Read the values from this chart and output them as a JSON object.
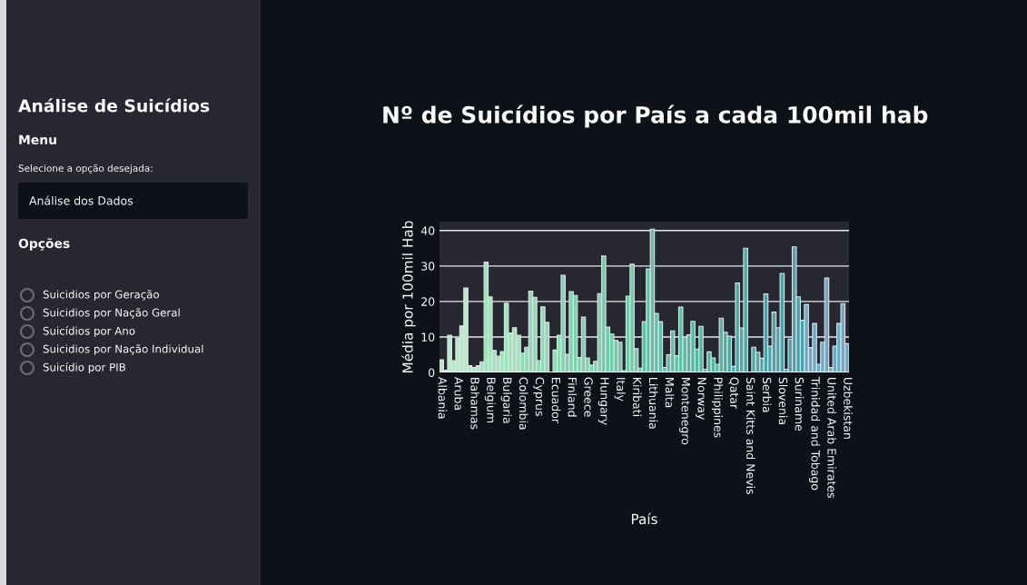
{
  "chart_data": {
    "type": "bar",
    "title": "Nº de Suicídios por País a cada 100mil hab",
    "xlabel": "País",
    "ylabel": "Média por 100mil Hab",
    "categories": [
      "Albania",
      null,
      null,
      null,
      "Aruba",
      null,
      null,
      null,
      "Bahamas",
      null,
      null,
      null,
      "Belgium",
      null,
      null,
      null,
      "Bulgaria",
      null,
      null,
      null,
      "Colombia",
      null,
      null,
      null,
      "Cyprus",
      null,
      null,
      null,
      "Ecuador",
      null,
      null,
      null,
      "Finland",
      null,
      null,
      null,
      "Greece",
      null,
      null,
      null,
      "Hungary",
      null,
      null,
      null,
      "Italy",
      null,
      null,
      null,
      "Kiribati",
      null,
      null,
      null,
      "Lithuania",
      null,
      null,
      null,
      "Malta",
      null,
      null,
      null,
      "Montenegro",
      null,
      null,
      null,
      "Norway",
      null,
      null,
      null,
      "Philippines",
      null,
      null,
      null,
      "Qatar",
      null,
      null,
      null,
      "Saint Kitts and Nevis",
      null,
      null,
      null,
      "Serbia",
      null,
      null,
      null,
      "Slovenia",
      null,
      null,
      null,
      "Suriname",
      null,
      null,
      null,
      "Trinidad and Tobago",
      null,
      null,
      null,
      "United Arab Emirates",
      null,
      null,
      null,
      "Uzbekistan"
    ],
    "values": [
      3.6,
      0.6,
      10.5,
      3.3,
      9.6,
      13.1,
      23.8,
      1.9,
      1.4,
      1.9,
      3.0,
      31.1,
      21.3,
      6.2,
      4.6,
      5.9,
      19.5,
      11.1,
      12.6,
      10.5,
      5.4,
      7.1,
      22.9,
      21.2,
      3.3,
      18.5,
      14.1,
      0,
      6.3,
      10.5,
      27.4,
      5.1,
      22.8,
      21.7,
      4.2,
      15.6,
      4.1,
      2.1,
      3.1,
      22.2,
      32.8,
      12.8,
      10.8,
      9.0,
      8.5,
      0.5,
      21.5,
      30.5,
      6.7,
      1.2,
      14.3,
      29.2,
      40.4,
      16.6,
      14.3,
      1.4,
      5.0,
      11.7,
      4.7,
      18.4,
      10.0,
      10.6,
      14.4,
      6.6,
      13.0,
      0.9,
      5.8,
      4.1,
      2.3,
      15.3,
      11.3,
      10.2,
      1.7,
      25.2,
      12.5,
      35.0,
      0,
      7.1,
      5.7,
      4.0,
      22.1,
      7.4,
      17.0,
      12.6,
      27.9,
      0.9,
      9.4,
      35.4,
      21.3,
      14.7,
      19.1,
      7.0,
      13.8,
      2.3,
      8.5,
      26.6,
      1.4,
      7.4,
      13.8,
      19.4,
      8.1
    ],
    "colors": [
      "#b5ebc6",
      "#b5ebc6",
      "#b5ebc6",
      "#b5ebc6",
      "#b5ebc6",
      "#b5ebc6",
      "#b5ebc6",
      "#b5ebc6",
      "#b5ebc6",
      "#b5ebc6",
      "#a0e4bc",
      "#a0e4bc",
      "#a0e4bc",
      "#a0e4bc",
      "#a0e4bc",
      "#a0e4bc",
      "#a0e4bc",
      "#a0e4bc",
      "#a0e4bc",
      "#a0e4bc",
      "#8edcb4",
      "#8edcb4",
      "#8edcb4",
      "#8edcb4",
      "#8edcb4",
      "#8edcb4",
      "#8edcb4",
      "#8edcb4",
      "#8edcb4",
      "#8edcb4",
      "#7cd4ad",
      "#7cd4ad",
      "#7cd4ad",
      "#7cd4ad",
      "#7cd4ad",
      "#7cd4ad",
      "#7cd4ad",
      "#7cd4ad",
      "#7cd4ad",
      "#7cd4ad",
      "#6ccca8",
      "#6ccca8",
      "#6ccca8",
      "#6ccca8",
      "#6ccca8",
      "#6ccca8",
      "#6ccca8",
      "#6ccca8",
      "#6ccca8",
      "#6ccca8",
      "#5ec3a5",
      "#5ec3a5",
      "#5ec3a5",
      "#5ec3a5",
      "#5ec3a5",
      "#5ec3a5",
      "#5ec3a5",
      "#5ec3a5",
      "#5ec3a5",
      "#5ec3a5",
      "#52b8a4",
      "#52b8a4",
      "#52b8a4",
      "#52b8a4",
      "#52b8a4",
      "#52b8a4",
      "#52b8a4",
      "#52b8a4",
      "#52b8a4",
      "#52b8a4",
      "#48aca4",
      "#48aca4",
      "#48aca4",
      "#48aca4",
      "#48aca4",
      "#48aca4",
      "#48aca4",
      "#48aca4",
      "#48aca4",
      "#48aca4",
      "#4aa2a8",
      "#4aa2a8",
      "#4aa2a8",
      "#4aa2a8",
      "#4aa2a8",
      "#4aa2a8",
      "#4aa2a8",
      "#4aa2a8",
      "#4aa2a8",
      "#4aa2a8",
      "#6aaac4",
      "#6aaac4",
      "#6aaac4",
      "#6aaac4",
      "#6aaac4",
      "#6aaac4",
      "#6aaac4",
      "#6aaac4",
      "#6aaac4",
      "#6aaac4",
      "#6aaac4"
    ],
    "ylim": [
      0,
      42.5
    ],
    "yticks": [
      0,
      10,
      20,
      30,
      40
    ],
    "grid": "y",
    "annotations": [
      "Análise de Suicídios",
      "Menu",
      "Selecione a opção desejada:",
      "Análise dos Dados",
      "Opções",
      "Suicidios por Geração",
      "Suicidios por Nação Geral",
      "Suicídios por Ano",
      "Suicidios por Nação Individual",
      "Suicídio por PIB"
    ]
  }
}
